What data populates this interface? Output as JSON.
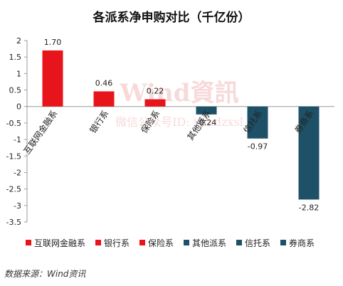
{
  "chart_data": {
    "type": "bar",
    "title": "各派系净申购对比（千亿份）",
    "categories": [
      "互联网金融系",
      "银行系",
      "保险系",
      "其他派系",
      "信托系",
      "券商系"
    ],
    "values": [
      1.7,
      0.46,
      0.22,
      -0.24,
      -0.97,
      -2.82
    ],
    "data_labels": [
      "1.70",
      "0.46",
      "0.22",
      "-0.24",
      "-0.97",
      "-2.82"
    ],
    "colors": [
      "#e8141b",
      "#e8141b",
      "#e8141b",
      "#1e5068",
      "#1e5068",
      "#1e5068"
    ],
    "ylim": [
      -3.5,
      2
    ],
    "yticks": [
      2,
      1.5,
      1,
      0.5,
      0,
      -0.5,
      -1,
      -1.5,
      -2,
      -2.5,
      -3,
      -3.5
    ],
    "ytick_labels": [
      "2",
      "1.5",
      "1",
      "0.5",
      "0",
      "-0.5",
      "-1",
      "-1.5",
      "-2",
      "-2.5",
      "-3",
      "-3.5"
    ],
    "grid": false,
    "legend_position": "bottom",
    "legend": [
      "互联网金融系",
      "银行系",
      "保险系",
      "其他派系",
      "信托系",
      "券商系"
    ],
    "xlabel": "",
    "ylabel": ""
  },
  "source": "数据来源：Wind资讯",
  "watermark": {
    "main": "Wind資訊",
    "sub": "微信公众号ID: windzxsl"
  }
}
